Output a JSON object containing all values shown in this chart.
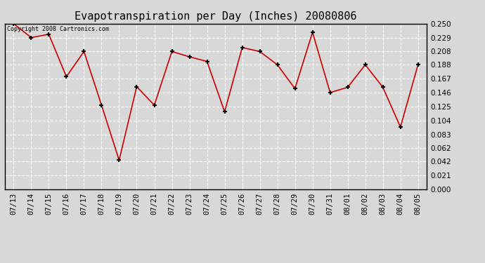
{
  "title": "Evapotranspiration per Day (Inches) 20080806",
  "copyright_text": "Copyright 2008 Cartronics.com",
  "dates": [
    "07/13",
    "07/14",
    "07/15",
    "07/16",
    "07/17",
    "07/18",
    "07/19",
    "07/20",
    "07/21",
    "07/22",
    "07/23",
    "07/24",
    "07/25",
    "07/26",
    "07/27",
    "07/28",
    "07/29",
    "07/30",
    "07/31",
    "08/01",
    "08/02",
    "08/03",
    "08/04",
    "08/05"
  ],
  "values": [
    0.25,
    0.229,
    0.234,
    0.17,
    0.208,
    0.127,
    0.044,
    0.155,
    0.127,
    0.208,
    0.2,
    0.193,
    0.117,
    0.214,
    0.208,
    0.188,
    0.152,
    0.237,
    0.146,
    0.154,
    0.188,
    0.154,
    0.094,
    0.188
  ],
  "line_color": "#cc0000",
  "marker_color": "#cc0000",
  "bg_color": "#d8d8d8",
  "plot_bg_color": "#d8d8d8",
  "grid_color": "#ffffff",
  "ylim": [
    0.0,
    0.25
  ],
  "yticks": [
    0.0,
    0.021,
    0.042,
    0.062,
    0.083,
    0.104,
    0.125,
    0.146,
    0.167,
    0.188,
    0.208,
    0.229,
    0.25
  ],
  "title_fontsize": 11,
  "copyright_fontsize": 6,
  "tick_fontsize": 7.5
}
